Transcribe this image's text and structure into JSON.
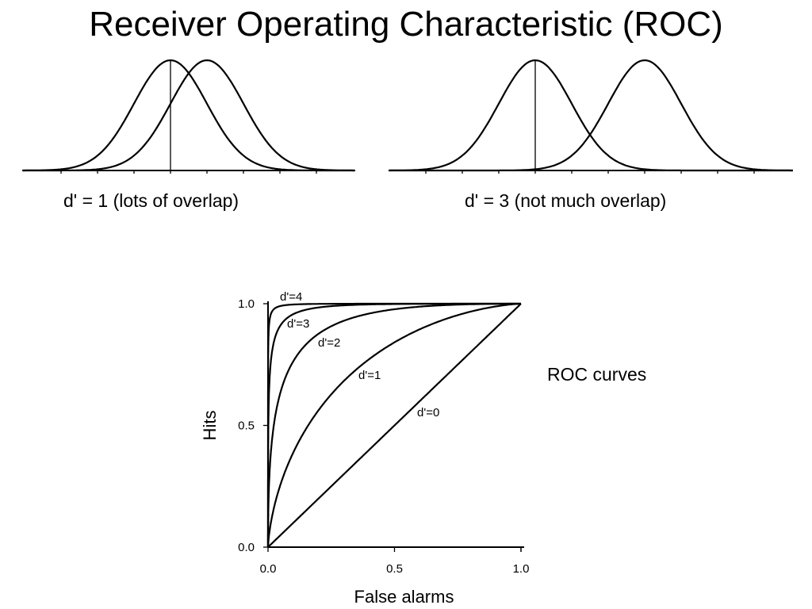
{
  "slide": {
    "title": "Receiver Operating Characteristic (ROC)"
  },
  "panels": [
    {
      "caption": "d' = 1 (lots of overlap)",
      "d_prime": 1
    },
    {
      "caption": "d' = 3 (not much overlap)",
      "d_prime": 3
    }
  ],
  "roc_side_label": "ROC curves",
  "chart_data": [
    {
      "type": "line",
      "kind": "distribution-overlap",
      "d_prime": 1,
      "series": [
        {
          "mean": 0,
          "sd": 1
        },
        {
          "mean": 1,
          "sd": 1
        }
      ],
      "criterion": 0,
      "xlim": [
        -4.2,
        5.2
      ]
    },
    {
      "type": "line",
      "kind": "distribution-overlap",
      "d_prime": 3,
      "series": [
        {
          "mean": 0,
          "sd": 1
        },
        {
          "mean": 3,
          "sd": 1
        }
      ],
      "criterion": 0,
      "xlim": [
        -4.2,
        7.2
      ]
    },
    {
      "type": "line",
      "title": "",
      "xlabel": "False alarms",
      "ylabel": "Hits",
      "xlim": [
        0,
        1
      ],
      "ylim": [
        0,
        1
      ],
      "xticks": [
        "0.0",
        "0.5",
        "1.0"
      ],
      "yticks": [
        "0.0",
        "0.5",
        "1.0"
      ],
      "grid": false,
      "series": [
        {
          "name": "d'=4",
          "d_prime": 4
        },
        {
          "name": "d'=3",
          "d_prime": 3
        },
        {
          "name": "d'=2",
          "d_prime": 2
        },
        {
          "name": "d'=1",
          "d_prime": 1
        },
        {
          "name": "d'=0",
          "d_prime": 0
        }
      ]
    }
  ]
}
